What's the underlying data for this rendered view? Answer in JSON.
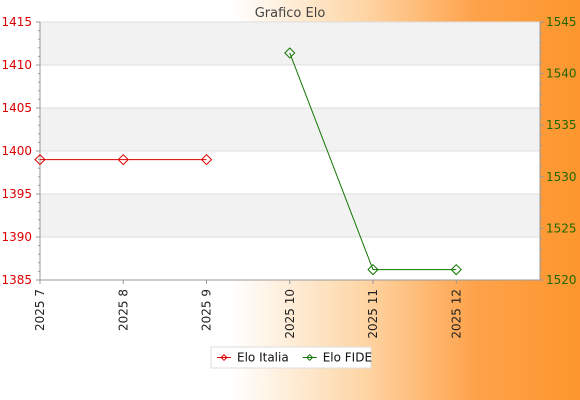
{
  "chart_data": {
    "type": "line",
    "title": "Grafico Elo",
    "categories": [
      "2025 7",
      "2025 8",
      "2025 9",
      "2025 10",
      "2025 11",
      "2025 12"
    ],
    "y_left": {
      "min": 1385,
      "max": 1415,
      "ticks": [
        1385,
        1390,
        1395,
        1400,
        1405,
        1410,
        1415
      ]
    },
    "y_right": {
      "min": 1520,
      "max": 1545,
      "ticks": [
        1520,
        1525,
        1530,
        1535,
        1540,
        1545
      ]
    },
    "series": [
      {
        "name": "Elo Italia",
        "axis": "left",
        "color": "#dd0000",
        "values": [
          1399,
          1399,
          1399,
          null,
          null,
          null
        ]
      },
      {
        "name": "Elo FIDE",
        "axis": "right",
        "color": "#117700",
        "values": [
          null,
          null,
          null,
          1542,
          1521,
          1521
        ]
      }
    ],
    "grid": true,
    "legend_position": "bottom-center"
  },
  "colors": {
    "band_light": "#f2f2f2",
    "band_white": "#ffffff"
  }
}
